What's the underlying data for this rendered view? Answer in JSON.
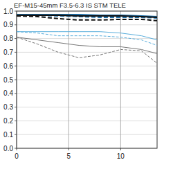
{
  "chart_data": {
    "type": "line",
    "title": "EF-M15-45mm F3.5-6.3 IS STM TELE",
    "x": [
      0,
      2,
      4,
      6,
      8,
      10,
      12,
      13.5
    ],
    "xlim": [
      0,
      13.5
    ],
    "xticks": [
      0,
      5,
      10
    ],
    "ylim": [
      0,
      1
    ],
    "yticks": [
      {
        "value": 0,
        "label": "0.0"
      },
      {
        "value": 0.1,
        "label": "0.1"
      },
      {
        "value": 0.2,
        "label": "0.2"
      },
      {
        "value": 0.3,
        "label": "0.3"
      },
      {
        "value": 0.4,
        "label": "0.4"
      },
      {
        "value": 0.5,
        "label": "0.5"
      },
      {
        "value": 0.6,
        "label": "0.6"
      },
      {
        "value": 0.7,
        "label": "0.7"
      },
      {
        "value": 0.8,
        "label": "0.8"
      },
      {
        "value": 0.9,
        "label": "0.9"
      },
      {
        "value": 1,
        "label": "1.0"
      }
    ],
    "grid": true,
    "series": [
      {
        "color": "#1f6fa8",
        "line_style": "solid",
        "values": [
          0.975,
          0.975,
          0.975,
          0.975,
          0.97,
          0.97,
          0.965,
          0.96
        ]
      },
      {
        "color": "#1f6fa8",
        "line_style": "dashed",
        "values": [
          0.975,
          0.97,
          0.965,
          0.96,
          0.955,
          0.955,
          0.955,
          0.95
        ]
      },
      {
        "color": "#111111",
        "line_style": "solid",
        "values": [
          0.97,
          0.97,
          0.97,
          0.965,
          0.965,
          0.965,
          0.96,
          0.955
        ]
      },
      {
        "color": "#111111",
        "line_style": "dashed",
        "values": [
          0.965,
          0.96,
          0.945,
          0.935,
          0.935,
          0.94,
          0.94,
          0.93
        ]
      },
      {
        "color": "#5aaedc",
        "line_style": "solid",
        "values": [
          0.85,
          0.85,
          0.85,
          0.85,
          0.85,
          0.84,
          0.82,
          0.79
        ]
      },
      {
        "color": "#5aaedc",
        "line_style": "dashed",
        "values": [
          0.85,
          0.84,
          0.82,
          0.82,
          0.82,
          0.81,
          0.79,
          0.75
        ]
      },
      {
        "color": "#777777",
        "line_style": "solid",
        "values": [
          0.81,
          0.79,
          0.77,
          0.75,
          0.74,
          0.74,
          0.72,
          0.69
        ]
      },
      {
        "color": "#777777",
        "line_style": "dashed",
        "values": [
          0.81,
          0.76,
          0.7,
          0.66,
          0.68,
          0.72,
          0.71,
          0.62
        ]
      }
    ]
  }
}
